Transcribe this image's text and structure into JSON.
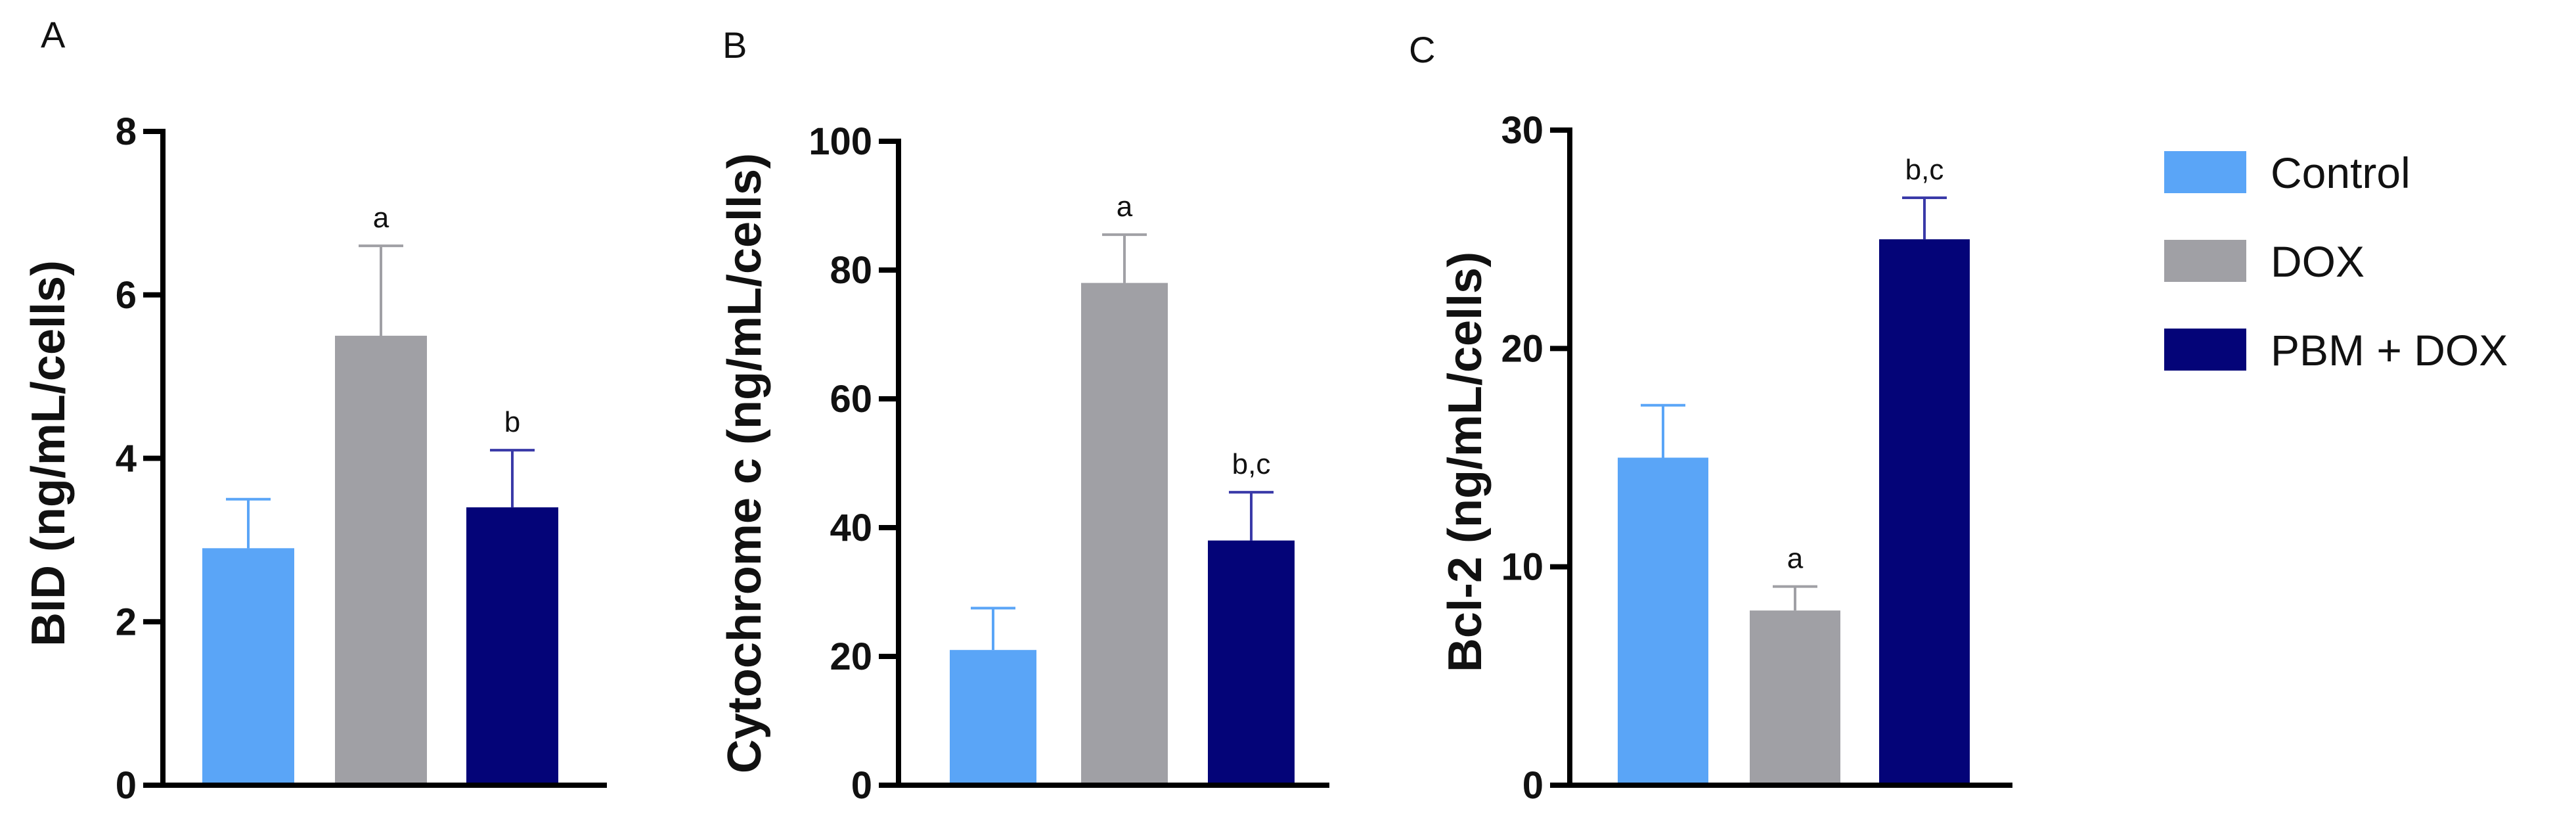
{
  "chart_data": [
    {
      "panel": "A",
      "type": "bar",
      "categories": [
        "Control",
        "DOX",
        "PBM + DOX"
      ],
      "values": [
        2.9,
        5.5,
        3.4
      ],
      "errors": [
        0.6,
        1.1,
        0.7
      ],
      "significance": [
        "",
        "a",
        "b"
      ],
      "title": "",
      "xlabel": "",
      "ylabel": "BID (ng/mL/cells)",
      "ylim": [
        0,
        8
      ],
      "yticks": [
        0,
        2,
        4,
        6,
        8
      ]
    },
    {
      "panel": "B",
      "type": "bar",
      "categories": [
        "Control",
        "DOX",
        "PBM + DOX"
      ],
      "values": [
        21,
        78,
        38
      ],
      "errors": [
        6.5,
        7.5,
        7.5
      ],
      "significance": [
        "",
        "a",
        "b,c"
      ],
      "title": "",
      "xlabel": "",
      "ylabel": "Cytochrome c (ng/mL/cells)",
      "ylim": [
        0,
        100
      ],
      "yticks": [
        0,
        20,
        40,
        60,
        80,
        100
      ]
    },
    {
      "panel": "C",
      "type": "bar",
      "categories": [
        "Control",
        "DOX",
        "PBM + DOX"
      ],
      "values": [
        15,
        8,
        25
      ],
      "errors": [
        2.4,
        1.1,
        1.9
      ],
      "significance": [
        "",
        "a",
        "b,c"
      ],
      "title": "",
      "xlabel": "",
      "ylabel": "Bcl-2 (ng/mL/cells)",
      "ylim": [
        0,
        30
      ],
      "yticks": [
        0,
        10,
        20,
        30
      ]
    }
  ],
  "legend": {
    "items": [
      {
        "label": "Control",
        "color": "#5aa5f7"
      },
      {
        "label": "DOX",
        "color": "#a0a0a5"
      },
      {
        "label": "PBM + DOX",
        "color": "#040478"
      }
    ]
  },
  "colors": {
    "errorbar": [
      "#5aa5f7",
      "#a0a0a5",
      "#3a3aa8"
    ],
    "axis": "#000000"
  }
}
